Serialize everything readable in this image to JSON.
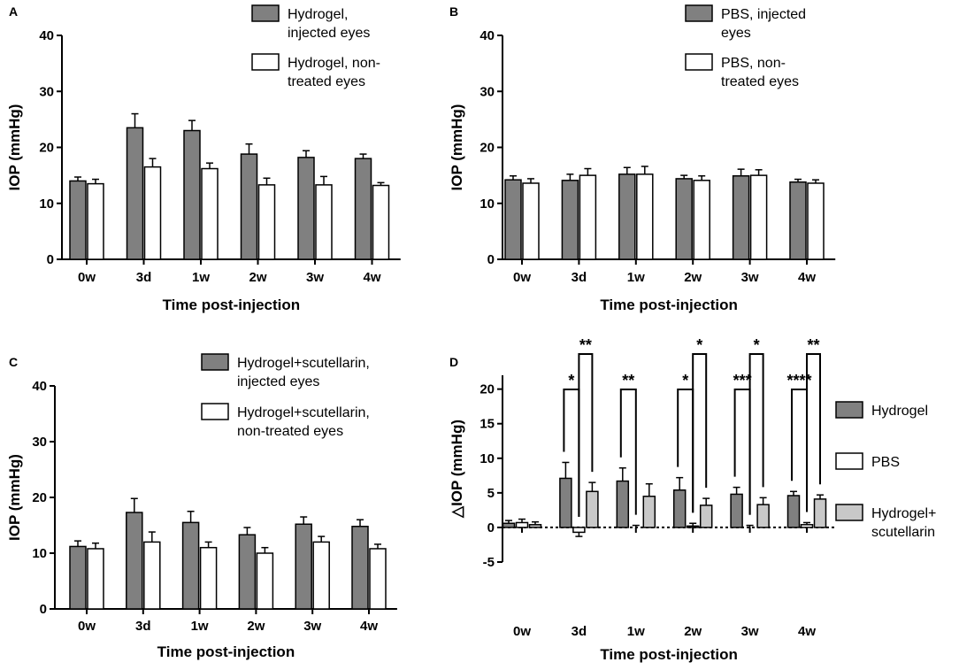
{
  "chart_data": [
    {
      "type": "bar",
      "label": "A",
      "ylabel": "IOP (mmHg)",
      "xlabel": "Time post-injection",
      "categories": [
        "0w",
        "3d",
        "1w",
        "2w",
        "3w",
        "4w"
      ],
      "ylim": [
        0,
        40
      ],
      "yticks": [
        0,
        10,
        20,
        30,
        40
      ],
      "series": [
        {
          "name": "Hydrogel,\ninjected eyes",
          "color": "#808080",
          "values": [
            14,
            23.5,
            23,
            18.8,
            18.2,
            18
          ],
          "errors": [
            0.7,
            2.5,
            1.8,
            1.8,
            1.2,
            0.8
          ]
        },
        {
          "name": "Hydrogel, non-\ntreated eyes",
          "color": "#ffffff",
          "values": [
            13.5,
            16.5,
            16.2,
            13.3,
            13.3,
            13.2
          ],
          "errors": [
            0.8,
            1.5,
            1.0,
            1.2,
            1.5,
            0.5
          ]
        }
      ]
    },
    {
      "type": "bar",
      "label": "B",
      "ylabel": "IOP (mmHg)",
      "xlabel": "Time post-injection",
      "categories": [
        "0w",
        "3d",
        "1w",
        "2w",
        "3w",
        "4w"
      ],
      "ylim": [
        0,
        40
      ],
      "yticks": [
        0,
        10,
        20,
        30,
        40
      ],
      "series": [
        {
          "name": "PBS, injected\neyes",
          "color": "#808080",
          "values": [
            14.2,
            14.1,
            15.2,
            14.4,
            14.9,
            13.8
          ],
          "errors": [
            0.7,
            1.1,
            1.2,
            0.6,
            1.2,
            0.5
          ]
        },
        {
          "name": "PBS, non-\ntreated eyes",
          "color": "#ffffff",
          "values": [
            13.6,
            15,
            15.2,
            14.1,
            15,
            13.6
          ],
          "errors": [
            0.8,
            1.2,
            1.4,
            0.8,
            1.0,
            0.6
          ]
        }
      ]
    },
    {
      "type": "bar",
      "label": "C",
      "ylabel": "IOP (mmHg)",
      "xlabel": "Time post-injection",
      "categories": [
        "0w",
        "3d",
        "1w",
        "2w",
        "3w",
        "4w"
      ],
      "ylim": [
        0,
        40
      ],
      "yticks": [
        0,
        10,
        20,
        30,
        40
      ],
      "series": [
        {
          "name": "Hydrogel+scutellarin,\ninjected eyes",
          "color": "#808080",
          "values": [
            11.2,
            17.3,
            15.5,
            13.3,
            15.2,
            14.8
          ],
          "errors": [
            1,
            2.5,
            2,
            1.3,
            1.3,
            1.2
          ]
        },
        {
          "name": "Hydrogel+scutellarin,\nnon-treated eyes",
          "color": "#ffffff",
          "values": [
            10.8,
            12,
            11,
            10,
            12,
            10.8
          ],
          "errors": [
            1,
            1.8,
            1,
            1,
            1,
            0.8
          ]
        }
      ]
    },
    {
      "type": "bar",
      "label": "D",
      "ylabel": "△IOP (mmHg)",
      "xlabel": "Time post-injection",
      "categories": [
        "0w",
        "3d",
        "1w",
        "2w",
        "3w",
        "4w"
      ],
      "ylim": [
        -5,
        22
      ],
      "yticks": [
        -5,
        0,
        5,
        10,
        15,
        20
      ],
      "series": [
        {
          "name": "Hydrogel",
          "color": "#808080",
          "values": [
            0.6,
            7.1,
            6.7,
            5.4,
            4.8,
            4.6
          ],
          "errors": [
            0.4,
            2.3,
            1.9,
            1.8,
            1,
            0.6
          ]
        },
        {
          "name": "PBS",
          "color": "#ffffff",
          "values": [
            0.7,
            -0.7,
            0,
            0.2,
            0,
            0.4
          ],
          "errors": [
            0.5,
            0.6,
            0.3,
            0.4,
            0.3,
            0.3
          ]
        },
        {
          "name": "Hydrogel+\nscutellarin",
          "color": "#c8c8c8",
          "values": [
            0.4,
            5.2,
            4.5,
            3.2,
            3.3,
            4.1
          ],
          "errors": [
            0.4,
            1.3,
            1.8,
            1,
            1,
            0.6
          ]
        }
      ],
      "comparisons": [
        {
          "label": "*",
          "category": 1,
          "pair": [
            0,
            1
          ]
        },
        {
          "label": "**",
          "category": 1,
          "pair": [
            1,
            2
          ]
        },
        {
          "label": "**",
          "category": 2,
          "pair": [
            0,
            1
          ]
        },
        {
          "label": "*",
          "category": 3,
          "pair": [
            0,
            1
          ]
        },
        {
          "label": "*",
          "category": 3,
          "pair": [
            1,
            2
          ]
        },
        {
          "label": "***",
          "category": 4,
          "pair": [
            0,
            1
          ]
        },
        {
          "label": "*",
          "category": 4,
          "pair": [
            1,
            2
          ]
        },
        {
          "label": "****",
          "category": 5,
          "pair": [
            0,
            1
          ]
        },
        {
          "label": "**",
          "category": 5,
          "pair": [
            1,
            2
          ]
        }
      ]
    }
  ]
}
